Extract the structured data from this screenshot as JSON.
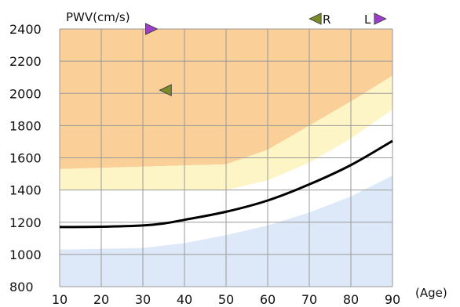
{
  "chart_data": {
    "type": "line",
    "title": "",
    "ylabel": "PWV(cm/s)",
    "xlabel": "(Age)",
    "x_ticks": [
      10,
      20,
      30,
      40,
      50,
      60,
      70,
      80,
      90
    ],
    "y_ticks": [
      800,
      1000,
      1200,
      1400,
      1600,
      1800,
      2000,
      2200,
      2400
    ],
    "xlim": [
      10,
      90
    ],
    "ylim": [
      800,
      2400
    ],
    "grid": true,
    "legend": {
      "position": "top-right",
      "entries": [
        {
          "label": "R",
          "marker": "left-triangle",
          "color": "#7a8b2a"
        },
        {
          "label": "L",
          "marker": "right-triangle",
          "color": "#9b3fc9"
        }
      ]
    },
    "bands": [
      {
        "color": "#fbcf98",
        "upper": [
          [
            10,
            2400
          ],
          [
            90,
            2400
          ]
        ],
        "lower": [
          [
            10,
            1530
          ],
          [
            50,
            1560
          ],
          [
            60,
            1650
          ],
          [
            70,
            1800
          ],
          [
            80,
            1950
          ],
          [
            90,
            2110
          ]
        ]
      },
      {
        "color": "#fdf5c5",
        "upper": [
          [
            10,
            1530
          ],
          [
            50,
            1560
          ],
          [
            60,
            1650
          ],
          [
            70,
            1800
          ],
          [
            80,
            1950
          ],
          [
            90,
            2110
          ]
        ],
        "lower": [
          [
            10,
            1400
          ],
          [
            50,
            1400
          ],
          [
            60,
            1460
          ],
          [
            70,
            1570
          ],
          [
            80,
            1720
          ],
          [
            90,
            1900
          ]
        ]
      },
      {
        "color": "#dde8f8",
        "upper": [
          [
            10,
            1030
          ],
          [
            30,
            1040
          ],
          [
            40,
            1070
          ],
          [
            50,
            1120
          ],
          [
            60,
            1180
          ],
          [
            70,
            1260
          ],
          [
            80,
            1360
          ],
          [
            90,
            1490
          ]
        ],
        "lower": [
          [
            10,
            800
          ],
          [
            90,
            800
          ]
        ]
      }
    ],
    "series": [
      {
        "values": [
          [
            10,
            1170
          ],
          [
            20,
            1172
          ],
          [
            30,
            1180
          ],
          [
            35,
            1192
          ],
          [
            40,
            1215
          ],
          [
            50,
            1265
          ],
          [
            60,
            1335
          ],
          [
            70,
            1435
          ],
          [
            80,
            1555
          ],
          [
            90,
            1705
          ]
        ],
        "color": "#000000"
      }
    ],
    "markers": [
      {
        "type": "right-triangle",
        "x": 32,
        "y": 2400,
        "color": "#9b3fc9"
      },
      {
        "type": "left-triangle",
        "x": 35.5,
        "y": 2020,
        "color": "#7a8b2a"
      }
    ]
  }
}
